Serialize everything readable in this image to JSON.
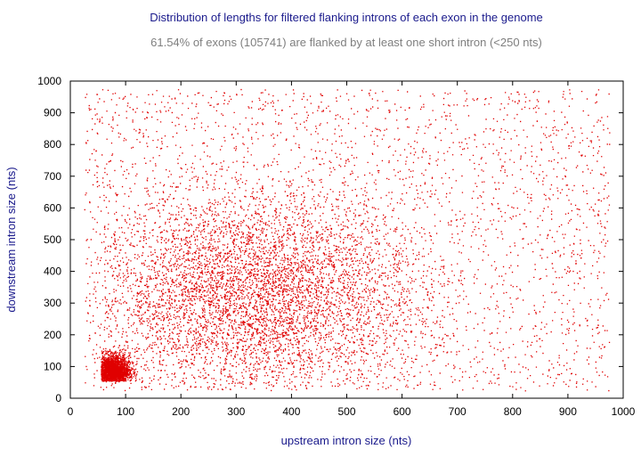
{
  "chart_data": {
    "type": "scatter",
    "title": "Distribution of lengths for filtered flanking introns of each exon in the genome",
    "subtitle": "61.54% of exons (105741) are flanked by at least one short intron (<250 nts)",
    "xlabel": "upstream intron size (nts)",
    "ylabel": "downstream intron size (nts)",
    "xlim": [
      0,
      1000
    ],
    "ylim": [
      0,
      1000
    ],
    "x_ticks": [
      "0",
      "100",
      "200",
      "300",
      "400",
      "500",
      "600",
      "700",
      "800",
      "900",
      "1000"
    ],
    "y_ticks": [
      "0",
      "100",
      "200",
      "300",
      "400",
      "500",
      "600",
      "700",
      "800",
      "900",
      "1000"
    ],
    "point_color": "#e00000",
    "grid": false,
    "legend": "none",
    "density_regions": [
      {
        "x_range": [
          25,
          975
        ],
        "y_range": [
          25,
          975
        ],
        "relative_density": "low",
        "note": "diffuse background points"
      },
      {
        "x_range": [
          60,
          700
        ],
        "y_range": [
          30,
          700
        ],
        "relative_density": "high",
        "center": [
          330,
          330
        ]
      },
      {
        "x_range": [
          55,
          120
        ],
        "y_range": [
          55,
          160
        ],
        "relative_density": "very high",
        "center": [
          75,
          85
        ]
      }
    ]
  }
}
